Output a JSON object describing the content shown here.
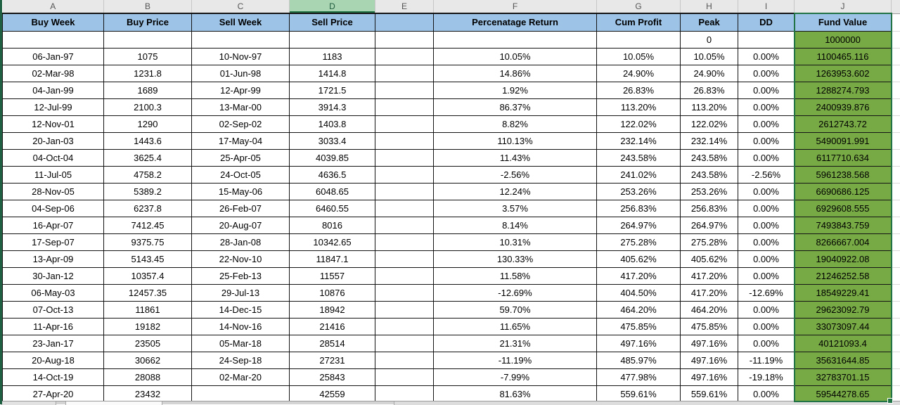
{
  "columns": {
    "letters": [
      "A",
      "B",
      "C",
      "D",
      "E",
      "F",
      "G",
      "H",
      "I",
      "J"
    ],
    "selected_letter": "D"
  },
  "table": {
    "headers": [
      "Buy Week",
      "Buy Price",
      "Sell Week",
      "Sell Price",
      "",
      "Percenatage Return",
      "Cum Profit",
      "Peak",
      "DD",
      "Fund Value"
    ],
    "seed_row": [
      "",
      "",
      "",
      "",
      "",
      "",
      "",
      "0",
      "",
      "1000000"
    ],
    "rows": [
      [
        "06-Jan-97",
        "1075",
        "10-Nov-97",
        "1183",
        "",
        "10.05%",
        "10.05%",
        "10.05%",
        "0.00%",
        "1100465.116"
      ],
      [
        "02-Mar-98",
        "1231.8",
        "01-Jun-98",
        "1414.8",
        "",
        "14.86%",
        "24.90%",
        "24.90%",
        "0.00%",
        "1263953.602"
      ],
      [
        "04-Jan-99",
        "1689",
        "12-Apr-99",
        "1721.5",
        "",
        "1.92%",
        "26.83%",
        "26.83%",
        "0.00%",
        "1288274.793"
      ],
      [
        "12-Jul-99",
        "2100.3",
        "13-Mar-00",
        "3914.3",
        "",
        "86.37%",
        "113.20%",
        "113.20%",
        "0.00%",
        "2400939.876"
      ],
      [
        "12-Nov-01",
        "1290",
        "02-Sep-02",
        "1403.8",
        "",
        "8.82%",
        "122.02%",
        "122.02%",
        "0.00%",
        "2612743.72"
      ],
      [
        "20-Jan-03",
        "1443.6",
        "17-May-04",
        "3033.4",
        "",
        "110.13%",
        "232.14%",
        "232.14%",
        "0.00%",
        "5490091.991"
      ],
      [
        "04-Oct-04",
        "3625.4",
        "25-Apr-05",
        "4039.85",
        "",
        "11.43%",
        "243.58%",
        "243.58%",
        "0.00%",
        "6117710.634"
      ],
      [
        "11-Jul-05",
        "4758.2",
        "24-Oct-05",
        "4636.5",
        "",
        "-2.56%",
        "241.02%",
        "243.58%",
        "-2.56%",
        "5961238.568"
      ],
      [
        "28-Nov-05",
        "5389.2",
        "15-May-06",
        "6048.65",
        "",
        "12.24%",
        "253.26%",
        "253.26%",
        "0.00%",
        "6690686.125"
      ],
      [
        "04-Sep-06",
        "6237.8",
        "26-Feb-07",
        "6460.55",
        "",
        "3.57%",
        "256.83%",
        "256.83%",
        "0.00%",
        "6929608.555"
      ],
      [
        "16-Apr-07",
        "7412.45",
        "20-Aug-07",
        "8016",
        "",
        "8.14%",
        "264.97%",
        "264.97%",
        "0.00%",
        "7493843.759"
      ],
      [
        "17-Sep-07",
        "9375.75",
        "28-Jan-08",
        "10342.65",
        "",
        "10.31%",
        "275.28%",
        "275.28%",
        "0.00%",
        "8266667.004"
      ],
      [
        "13-Apr-09",
        "5143.45",
        "22-Nov-10",
        "11847.1",
        "",
        "130.33%",
        "405.62%",
        "405.62%",
        "0.00%",
        "19040922.08"
      ],
      [
        "30-Jan-12",
        "10357.4",
        "25-Feb-13",
        "11557",
        "",
        "11.58%",
        "417.20%",
        "417.20%",
        "0.00%",
        "21246252.58"
      ],
      [
        "06-May-03",
        "12457.35",
        "29-Jul-13",
        "10876",
        "",
        "-12.69%",
        "404.50%",
        "417.20%",
        "-12.69%",
        "18549229.41"
      ],
      [
        "07-Oct-13",
        "11861",
        "14-Dec-15",
        "18942",
        "",
        "59.70%",
        "464.20%",
        "464.20%",
        "0.00%",
        "29623092.79"
      ],
      [
        "11-Apr-16",
        "19182",
        "14-Nov-16",
        "21416",
        "",
        "11.65%",
        "475.85%",
        "475.85%",
        "0.00%",
        "33073097.44"
      ],
      [
        "23-Jan-17",
        "23505",
        "05-Mar-18",
        "28514",
        "",
        "21.31%",
        "497.16%",
        "497.16%",
        "0.00%",
        "40121093.4"
      ],
      [
        "20-Aug-18",
        "30662",
        "24-Sep-18",
        "27231",
        "",
        "-11.19%",
        "485.97%",
        "497.16%",
        "-11.19%",
        "35631644.85"
      ],
      [
        "14-Oct-19",
        "28088",
        "02-Mar-20",
        "25843",
        "",
        "-7.99%",
        "477.98%",
        "497.16%",
        "-19.18%",
        "32783701.15"
      ],
      [
        "27-Apr-20",
        "23432",
        "",
        "42559",
        "",
        "81.63%",
        "559.61%",
        "559.61%",
        "0.00%",
        "59544278.65"
      ]
    ]
  },
  "colors": {
    "header_fill": "#9DC3E6",
    "fund_value_fill": "#77A945",
    "selection_border": "#217346",
    "selected_column_header_fill": "#A9D5B2",
    "window_edge": "#1E6041"
  }
}
